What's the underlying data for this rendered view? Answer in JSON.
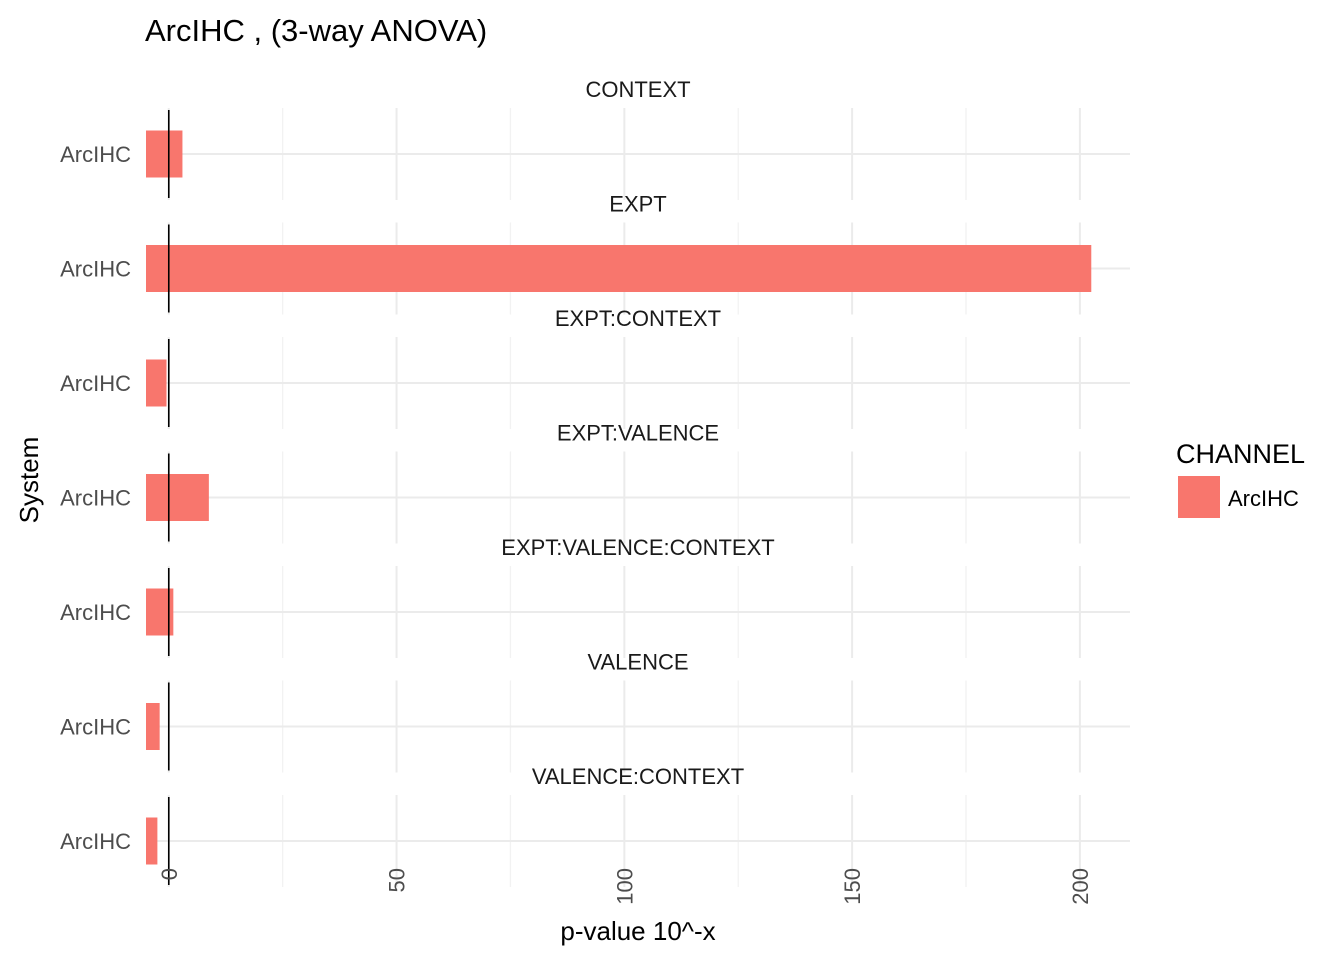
{
  "chart_data": {
    "type": "bar",
    "orientation": "horizontal",
    "title": "ArcIHC , (3-way ANOVA)",
    "xlabel": "p-value 10^-x",
    "ylabel": "System",
    "xlim": [
      -5,
      211
    ],
    "xticks": [
      0,
      50,
      100,
      150,
      200
    ],
    "minor_xticks": [
      25,
      75,
      125,
      175
    ],
    "reference_line_x": 0,
    "grid": true,
    "legend": {
      "title": "CHANNEL",
      "position": "right",
      "entries": [
        {
          "label": "ArcIHC",
          "color": "#F8766D"
        }
      ]
    },
    "series": [
      {
        "name": "ArcIHC",
        "color": "#F8766D"
      }
    ],
    "panels": [
      {
        "label": "CONTEXT",
        "category": "ArcIHC",
        "value": 3.0
      },
      {
        "label": "EXPT",
        "category": "ArcIHC",
        "value": 202.5
      },
      {
        "label": "EXPT:CONTEXT",
        "category": "ArcIHC",
        "value": -0.5
      },
      {
        "label": "EXPT:VALENCE",
        "category": "ArcIHC",
        "value": 8.8
      },
      {
        "label": "EXPT:VALENCE:CONTEXT",
        "category": "ArcIHC",
        "value": 1.0
      },
      {
        "label": "VALENCE",
        "category": "ArcIHC",
        "value": -2.0
      },
      {
        "label": "VALENCE:CONTEXT",
        "category": "ArcIHC",
        "value": -2.5
      }
    ]
  }
}
